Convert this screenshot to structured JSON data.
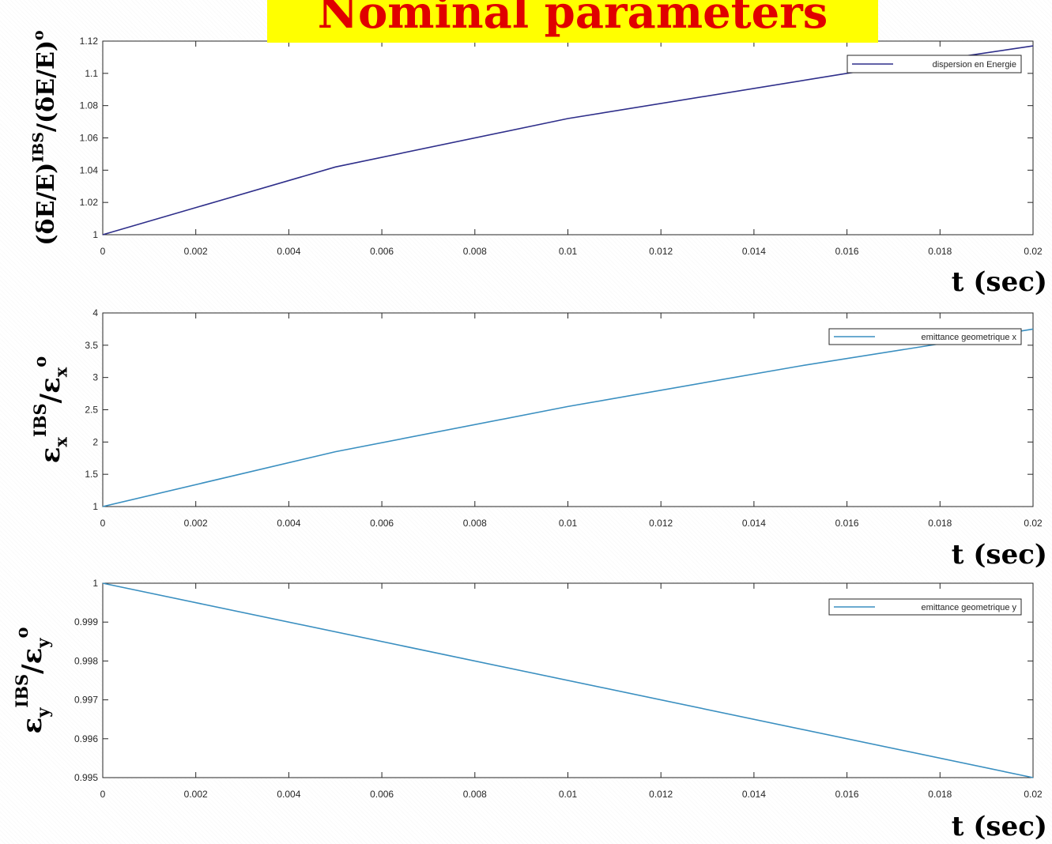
{
  "page": {
    "title": "Nominal parameters"
  },
  "chart_data": [
    {
      "type": "line",
      "ylabel": {
        "main": "(δE/E)",
        "sup": "IBS",
        "main2": "/(δE/E)",
        "sup2": "o",
        "color": "#e00000"
      },
      "xlabel": "t (sec)",
      "xlim": [
        0,
        0.02
      ],
      "ylim": [
        1,
        1.12
      ],
      "xticks": [
        0,
        0.002,
        0.004,
        0.006,
        0.008,
        0.01,
        0.012,
        0.014,
        0.016,
        0.018,
        0.02
      ],
      "xtick_labels": [
        "0",
        "0.002",
        "0.004",
        "0.006",
        "0.008",
        "0.01",
        "0.012",
        "0.014",
        "0.016",
        "0.018",
        "0.02"
      ],
      "yticks": [
        1,
        1.02,
        1.04,
        1.06,
        1.08,
        1.1,
        1.12
      ],
      "ytick_labels": [
        "1",
        "1.02",
        "1.04",
        "1.06",
        "1.08",
        "1.1",
        "1.12"
      ],
      "legend": "top-right",
      "series": [
        {
          "name": "dispersion en Energie",
          "color": "#2e2e8a",
          "x": [
            0,
            0.005,
            0.01,
            0.016,
            0.02
          ],
          "y": [
            1.0,
            1.042,
            1.072,
            1.1,
            1.117
          ]
        }
      ]
    },
    {
      "type": "line",
      "ylabel": {
        "main": "ε",
        "sub": "x",
        "sup": "IBS",
        "main2": "/ε",
        "sub2": "x",
        "sup2": "o",
        "color": "#1f3a6e"
      },
      "xlabel": "t (sec)",
      "xlim": [
        0,
        0.02
      ],
      "ylim": [
        1,
        4
      ],
      "xticks": [
        0,
        0.002,
        0.004,
        0.006,
        0.008,
        0.01,
        0.012,
        0.014,
        0.016,
        0.018,
        0.02
      ],
      "xtick_labels": [
        "0",
        "0.002",
        "0.004",
        "0.006",
        "0.008",
        "0.01",
        "0.012",
        "0.014",
        "0.016",
        "0.018",
        "0.02"
      ],
      "yticks": [
        1,
        1.5,
        2,
        2.5,
        3,
        3.5,
        4
      ],
      "ytick_labels": [
        "1",
        "1.5",
        "2",
        "2.5",
        "3",
        "3.5",
        "4"
      ],
      "legend": "top-right",
      "series": [
        {
          "name": "emittance geometrique x",
          "color": "#3a8fc0",
          "x": [
            0,
            0.005,
            0.01,
            0.015,
            0.02
          ],
          "y": [
            1.0,
            1.85,
            2.55,
            3.18,
            3.75
          ]
        }
      ]
    },
    {
      "type": "line",
      "ylabel": {
        "main": "ε",
        "sub": "y",
        "sup": "IBS",
        "main2": "/ε",
        "sub2": "y",
        "sup2": "o",
        "color": "#3a7a28"
      },
      "xlabel": "t (sec)",
      "xlim": [
        0,
        0.02
      ],
      "ylim": [
        0.995,
        1
      ],
      "xticks": [
        0,
        0.002,
        0.004,
        0.006,
        0.008,
        0.01,
        0.012,
        0.014,
        0.016,
        0.018,
        0.02
      ],
      "xtick_labels": [
        "0",
        "0.002",
        "0.004",
        "0.006",
        "0.008",
        "0.01",
        "0.012",
        "0.014",
        "0.016",
        "0.018",
        "0.02"
      ],
      "yticks": [
        0.995,
        0.996,
        0.997,
        0.998,
        0.999,
        1
      ],
      "ytick_labels": [
        "0.995",
        "0.996",
        "0.997",
        "0.998",
        "0.999",
        "1"
      ],
      "legend": "top-right",
      "series": [
        {
          "name": "emittance geometrique y",
          "color": "#3a8fc0",
          "x": [
            0,
            0.02
          ],
          "y": [
            1.0,
            0.995
          ]
        }
      ]
    }
  ]
}
